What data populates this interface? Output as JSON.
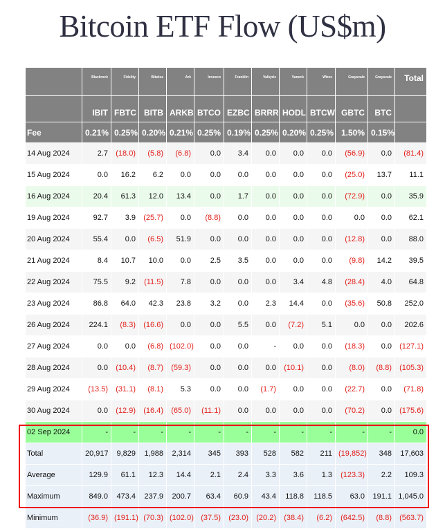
{
  "title": "Bitcoin ETF Flow (US$m)",
  "colors": {
    "header_bg": "#828282",
    "negative": "#e3201b",
    "highlight_border": "#ee1111",
    "odd_row": "#f5f5f5",
    "green_row": "#ebfbeb",
    "holiday_row": "#99ff99",
    "summary_bg": "#eaf0f8"
  },
  "table": {
    "issuers": [
      "",
      "Blackrock",
      "Fidelity",
      "Bitwise",
      "Ark",
      "Invesco",
      "Franklin",
      "Valkyrie",
      "Vaneck",
      "Wtree",
      "Grayscale",
      "Grayscale",
      "Total"
    ],
    "tickers": [
      "",
      "IBIT",
      "FBTC",
      "BITB",
      "ARKB",
      "BTCO",
      "EZBC",
      "BRRR",
      "HODL",
      "BTCW",
      "GBTC",
      "BTC",
      ""
    ],
    "fees": [
      "Fee",
      "0.21%",
      "0.25%",
      "0.20%",
      "0.21%",
      "0.25%",
      "0.19%",
      "0.25%",
      "0.20%",
      "0.25%",
      "1.50%",
      "0.15%",
      ""
    ],
    "rows": [
      {
        "date": "14 Aug 2024",
        "style": "odd",
        "values": [
          "2.7",
          "(18.0)",
          "(5.8)",
          "(6.8)",
          "0.0",
          "3.4",
          "0.0",
          "0.0",
          "0.0",
          "(56.9)",
          "0.0",
          "(81.4)"
        ]
      },
      {
        "date": "15 Aug 2024",
        "style": "even",
        "values": [
          "0.0",
          "16.2",
          "6.2",
          "0.0",
          "0.0",
          "0.0",
          "0.0",
          "0.0",
          "0.0",
          "(25.0)",
          "13.7",
          "11.1"
        ]
      },
      {
        "date": "16 Aug 2024",
        "style": "green",
        "values": [
          "20.4",
          "61.3",
          "12.0",
          "13.4",
          "0.0",
          "1.7",
          "0.0",
          "0.0",
          "0.0",
          "(72.9)",
          "0.0",
          "35.9"
        ]
      },
      {
        "date": "19 Aug 2024",
        "style": "even",
        "values": [
          "92.7",
          "3.9",
          "(25.7)",
          "0.0",
          "(8.8)",
          "0.0",
          "0.0",
          "0.0",
          "0.0",
          "0.0",
          "0.0",
          "62.1"
        ]
      },
      {
        "date": "20 Aug 2024",
        "style": "odd",
        "values": [
          "55.4",
          "0.0",
          "(6.5)",
          "51.9",
          "0.0",
          "0.0",
          "0.0",
          "0.0",
          "0.0",
          "(12.8)",
          "0.0",
          "88.0"
        ]
      },
      {
        "date": "21 Aug 2024",
        "style": "even",
        "values": [
          "8.4",
          "10.7",
          "10.0",
          "0.0",
          "2.5",
          "3.5",
          "0.0",
          "0.0",
          "0.0",
          "(9.8)",
          "14.2",
          "39.5"
        ]
      },
      {
        "date": "22 Aug 2024",
        "style": "odd",
        "values": [
          "75.5",
          "9.2",
          "(11.5)",
          "7.8",
          "0.0",
          "0.0",
          "0.0",
          "3.4",
          "4.8",
          "(28.4)",
          "4.0",
          "64.8"
        ]
      },
      {
        "date": "23 Aug 2024",
        "style": "even",
        "values": [
          "86.8",
          "64.0",
          "42.3",
          "23.8",
          "3.2",
          "0.0",
          "2.3",
          "14.4",
          "0.0",
          "(35.6)",
          "50.8",
          "252.0"
        ]
      },
      {
        "date": "26 Aug 2024",
        "style": "odd",
        "values": [
          "224.1",
          "(8.3)",
          "(16.6)",
          "0.0",
          "0.0",
          "5.5",
          "0.0",
          "(7.2)",
          "5.1",
          "0.0",
          "0.0",
          "202.6"
        ]
      },
      {
        "date": "27 Aug 2024",
        "style": "even",
        "values": [
          "0.0",
          "0.0",
          "(6.8)",
          "(102.0)",
          "0.0",
          "0.0",
          "-",
          "0.0",
          "0.0",
          "(18.3)",
          "0.0",
          "(127.1)"
        ]
      },
      {
        "date": "28 Aug 2024",
        "style": "odd",
        "values": [
          "0.0",
          "(10.4)",
          "(8.7)",
          "(59.3)",
          "0.0",
          "0.0",
          "0.0",
          "(10.1)",
          "0.0",
          "(8.0)",
          "(8.8)",
          "(105.3)"
        ]
      },
      {
        "date": "29 Aug 2024",
        "style": "even",
        "values": [
          "(13.5)",
          "(31.1)",
          "(8.1)",
          "5.3",
          "0.0",
          "0.0",
          "(1.7)",
          "0.0",
          "0.0",
          "(22.7)",
          "0.0",
          "(71.8)"
        ]
      },
      {
        "date": "30 Aug 2024",
        "style": "odd",
        "values": [
          "0.0",
          "(12.9)",
          "(16.4)",
          "(65.0)",
          "(11.1)",
          "0.0",
          "0.0",
          "0.0",
          "0.0",
          "(70.2)",
          "0.0",
          "(175.6)"
        ]
      },
      {
        "date": "02 Sep 2024",
        "style": "bright",
        "values": [
          "-",
          "-",
          "-",
          "-",
          "-",
          "-",
          "-",
          "-",
          "-",
          "-",
          "-",
          "0.0"
        ]
      }
    ],
    "summary": [
      {
        "label": "Total",
        "values": [
          "20,917",
          "9,829",
          "1,988",
          "2,314",
          "345",
          "393",
          "528",
          "582",
          "211",
          "(19,852)",
          "348",
          "17,603"
        ]
      },
      {
        "label": "Average",
        "values": [
          "129.9",
          "61.1",
          "12.3",
          "14.4",
          "2.1",
          "2.4",
          "3.3",
          "3.6",
          "1.3",
          "(123.3)",
          "2.2",
          "109.3"
        ]
      },
      {
        "label": "Maximum",
        "values": [
          "849.0",
          "473.4",
          "237.9",
          "200.7",
          "63.4",
          "60.9",
          "43.4",
          "118.8",
          "118.5",
          "63.0",
          "191.1",
          "1,045.0"
        ]
      },
      {
        "label": "Minimum",
        "values": [
          "(36.9)",
          "(191.1)",
          "(70.3)",
          "(102.0)",
          "(37.5)",
          "(23.0)",
          "(20.2)",
          "(38.4)",
          "(6.2)",
          "(642.5)",
          "(8.8)",
          "(563.7)"
        ]
      }
    ]
  }
}
